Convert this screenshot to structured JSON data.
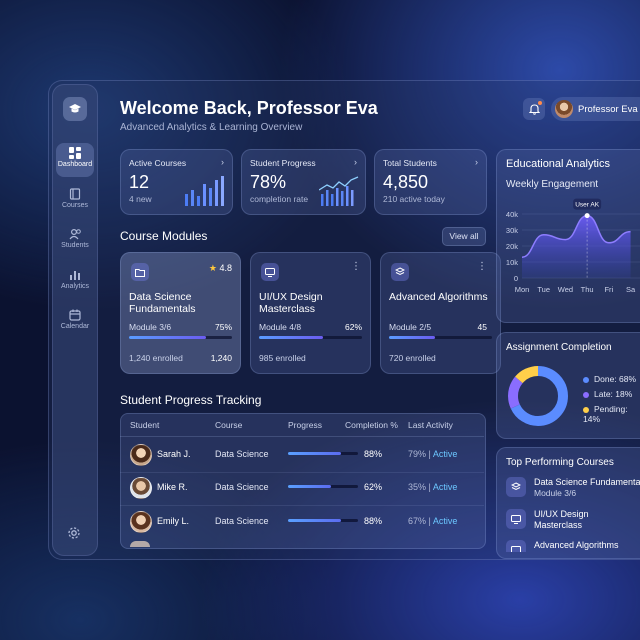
{
  "sidebar": {
    "items": [
      {
        "label": "Dashboard",
        "icon": "dashboard-icon",
        "active": true
      },
      {
        "label": "Courses",
        "icon": "book-icon",
        "active": false
      },
      {
        "label": "Students",
        "icon": "users-icon",
        "active": false
      },
      {
        "label": "Analytics",
        "icon": "bar-chart-icon",
        "active": false
      },
      {
        "label": "Calendar",
        "icon": "calendar-icon",
        "active": false
      }
    ]
  },
  "header": {
    "title": "Welcome Back, Professor Eva",
    "subtitle": "Advanced Analytics & Learning Overview",
    "profile_name": "Professor Eva"
  },
  "stats": [
    {
      "label": "Active Courses",
      "value": "12",
      "sub": "4 new"
    },
    {
      "label": "Student Progress",
      "value": "78%",
      "sub": "completion rate"
    },
    {
      "label": "Total Students",
      "value": "4,850",
      "sub": "210 active today"
    }
  ],
  "modules": {
    "title": "Course Modules",
    "view_all": "View all",
    "items": [
      {
        "name": "Data Science Fundamentals",
        "rating": "4.8",
        "progress_label": "Module 3/6",
        "percent": "75%",
        "fill": 0.75,
        "enrolled": "1,240 enrolled",
        "count": "1,240"
      },
      {
        "name": "UI/UX Design Masterclass",
        "progress_label": "Module 4/8",
        "percent": "62%",
        "fill": 0.62,
        "enrolled": "985 enrolled"
      },
      {
        "name": "Advanced Algorithms",
        "progress_label": "Module 2/5",
        "percent": "45",
        "fill": 0.45,
        "enrolled": "720 enrolled"
      }
    ]
  },
  "tracking": {
    "title": "Student Progress Tracking",
    "columns": [
      "Student",
      "Course",
      "Progress",
      "Completion %",
      "Last Activity"
    ],
    "rows": [
      {
        "name": "Sarah J.",
        "course": "Data Science",
        "progress": 0.75,
        "completion": "88%",
        "last": "79%",
        "status": "Active"
      },
      {
        "name": "Mike R.",
        "course": "Data Science",
        "progress": 0.62,
        "completion": "62%",
        "last": "35%",
        "status": "Active"
      },
      {
        "name": "Emily L.",
        "course": "Data Science",
        "progress": 0.75,
        "completion": "88%",
        "last": "67%",
        "status": "Active"
      }
    ]
  },
  "analytics": {
    "title": "Educational Analytics",
    "chart_title": "Weekly Engagement",
    "tooltip": "User AK"
  },
  "chart_data": {
    "type": "area",
    "categories": [
      "Mon",
      "Tue",
      "Wed",
      "Thu",
      "Fri",
      "Sa"
    ],
    "values": [
      13,
      27,
      24,
      39,
      22,
      29
    ],
    "title": "Weekly Engagement",
    "ylim": [
      0,
      40
    ],
    "yticks": [
      "40k",
      "30k",
      "20k",
      "10k",
      "0"
    ],
    "highlight_index": 3
  },
  "assignment": {
    "title": "Assignment Completion",
    "legend": [
      {
        "label": "Done: 68%",
        "color": "#5b8cff",
        "value": 68
      },
      {
        "label": "Late: 18%",
        "color": "#8a6dff",
        "value": 18
      },
      {
        "label": "Pending: 14%",
        "color": "#ffcf4a",
        "value": 14
      }
    ]
  },
  "top_courses": {
    "title": "Top Performing Courses",
    "items": [
      {
        "name": "Data Science Fundamentals",
        "sub": "Module 3/6"
      },
      {
        "name": "UI/UX Design Masterclass",
        "sub": ""
      },
      {
        "name": "Advanced Algorithms",
        "sub": ""
      }
    ]
  }
}
